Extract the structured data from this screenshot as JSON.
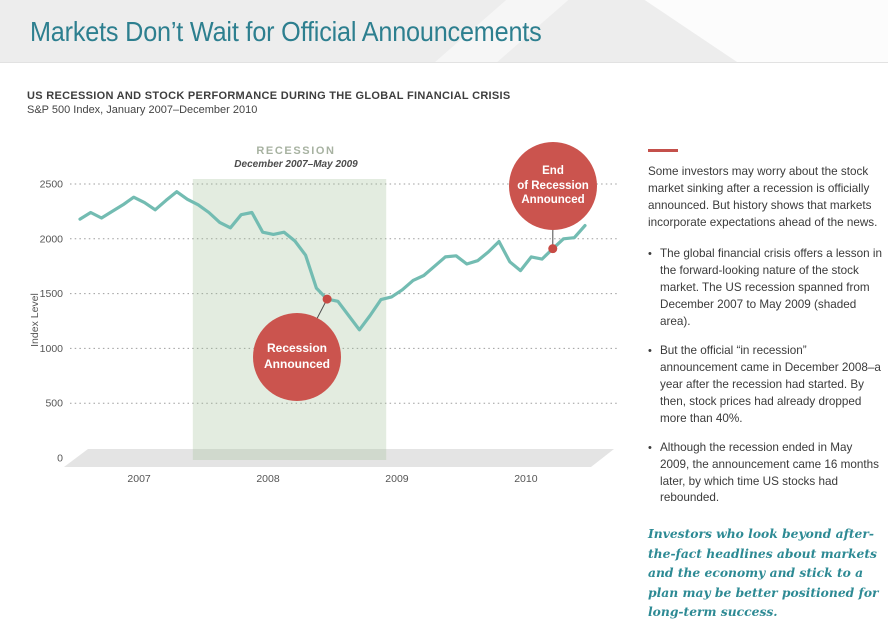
{
  "page_title": "Markets Don’t Wait for Official Announcements",
  "chart_heading": "US RECESSION AND STOCK PERFORMANCE DURING THE GLOBAL FINANCIAL CRISIS",
  "chart_subheading": "S&P 500 Index, January 2007–December 2010",
  "chart_data": {
    "type": "line",
    "title": "US RECESSION AND STOCK PERFORMANCE DURING THE GLOBAL FINANCIAL CRISIS",
    "subtitle": "S&P 500 Index, January 2007–December 2010",
    "ylabel": "Index Level",
    "ylim": [
      0,
      2500
    ],
    "yticks": [
      0,
      500,
      1000,
      1500,
      2000,
      2500
    ],
    "xticks": [
      "2007",
      "2008",
      "2009",
      "2010"
    ],
    "x_unit": "month",
    "x_range": "2007-01 to 2010-12",
    "grid": "dotted horizontal",
    "legend": "none",
    "series": [
      {
        "name": "S&P 500 Index",
        "color": "#73bcb2",
        "values": [
          2180,
          2240,
          2190,
          2250,
          2310,
          2380,
          2330,
          2265,
          2350,
          2430,
          2360,
          2310,
          2240,
          2150,
          2100,
          2220,
          2240,
          2060,
          2040,
          2060,
          1980,
          1850,
          1550,
          1450,
          1430,
          1300,
          1170,
          1300,
          1445,
          1470,
          1535,
          1620,
          1665,
          1750,
          1835,
          1845,
          1770,
          1800,
          1880,
          1975,
          1790,
          1710,
          1835,
          1815,
          1910,
          2000,
          2010,
          2120
        ]
      }
    ],
    "recession_band": {
      "label": "RECESSION",
      "sublabel": "December 2007–May 2009",
      "start_index": 10.5,
      "end_index": 28.5,
      "color": "rgba(163,191,152,0.30)"
    },
    "markers": [
      {
        "label_lines": [
          "Recession",
          "Announced"
        ],
        "index": 23,
        "value": 1450
      },
      {
        "label_lines": [
          "End",
          "of Recession",
          "Announced"
        ],
        "index": 44,
        "value": 1910
      }
    ]
  },
  "sidebar": {
    "intro": "Some investors may worry about the stock market sinking after a recession is officially announced. But history shows that markets incorporate expectations ahead of the news.",
    "bullets": [
      "The global financial crisis offers a lesson in the forward-looking nature of the stock market. The US recession spanned from December 2007 to May 2009 (shaded area).",
      "But the official “in recession” announcement came in December 2008–a year after the recession had started. By then, stock prices had already dropped more than 40%.",
      "Although the recession ended in May 2009, the announcement came 16 months later, by which time US stocks had rebounded."
    ],
    "closing": "Investors who look beyond after-the-fact headlines about markets and the economy and stick to a plan may be better positioned for long-term success."
  },
  "colors": {
    "title_teal": "#2d7f8f",
    "line_teal": "#73bcb2",
    "callout_red": "#cb544e",
    "marker_dot_red": "#c74b45",
    "accent_rule_red": "#c4504b",
    "closing_teal": "#2d8a94",
    "header_gray": "#ededed",
    "floor_gray": "#e4e4e4"
  }
}
